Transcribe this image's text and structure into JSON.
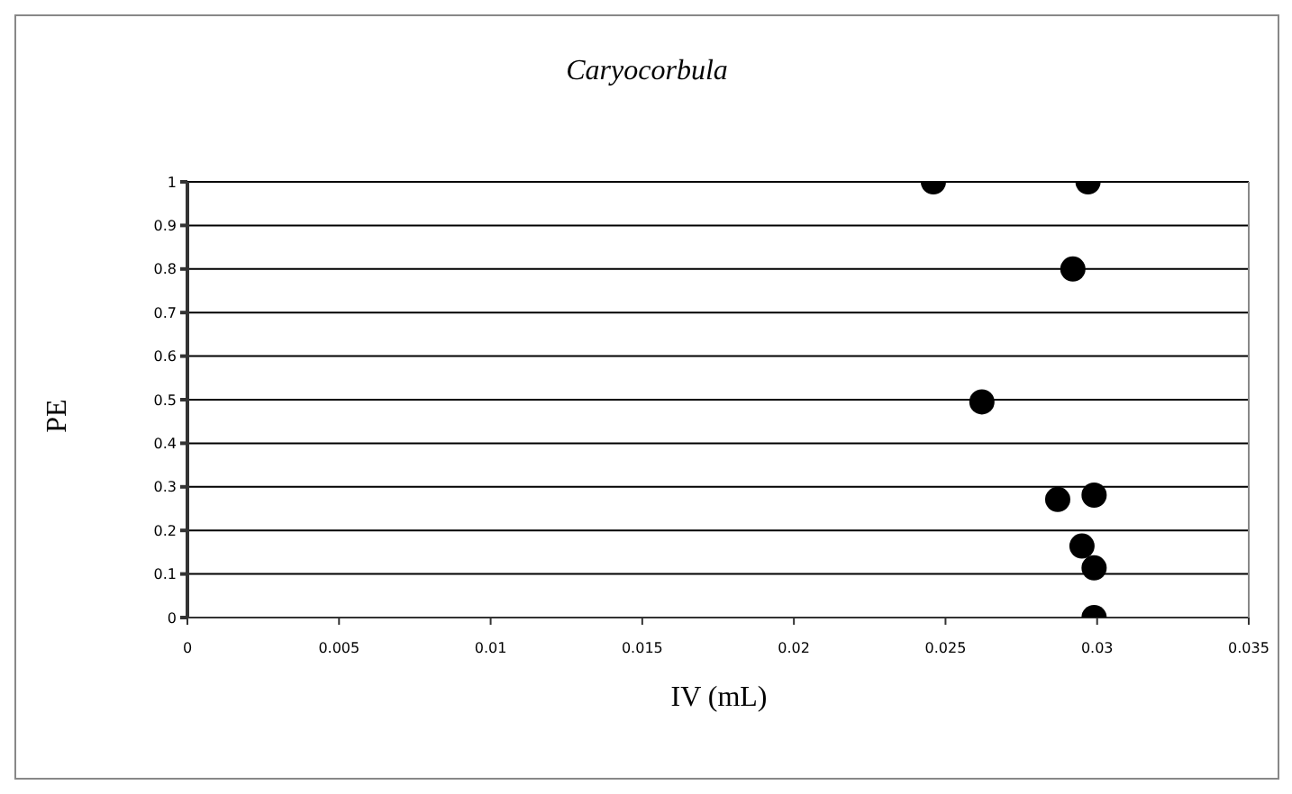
{
  "chart_data": {
    "type": "scatter",
    "title": "Caryocorbula",
    "xlabel": "IV (mL)",
    "ylabel": "PE",
    "x": [
      0.0246,
      0.0297,
      0.0292,
      0.0262,
      0.0287,
      0.0299,
      0.0295,
      0.0299,
      0.0299
    ],
    "values": [
      1,
      1,
      0.8,
      0.495,
      0.271,
      0.281,
      0.164,
      0.114,
      0
    ],
    "color": "#000000",
    "marker": "circle",
    "xlim": [
      0,
      0.035
    ],
    "xticks": [
      0,
      0.005,
      0.01,
      0.015,
      0.02,
      0.025,
      0.03,
      0.035
    ],
    "ylim": [
      0,
      1
    ],
    "yticks": [
      0,
      0.1,
      0.2,
      0.3,
      0.4,
      0.5,
      0.6,
      0.7,
      0.8,
      0.9,
      1
    ],
    "grid": "y",
    "legend": false
  }
}
